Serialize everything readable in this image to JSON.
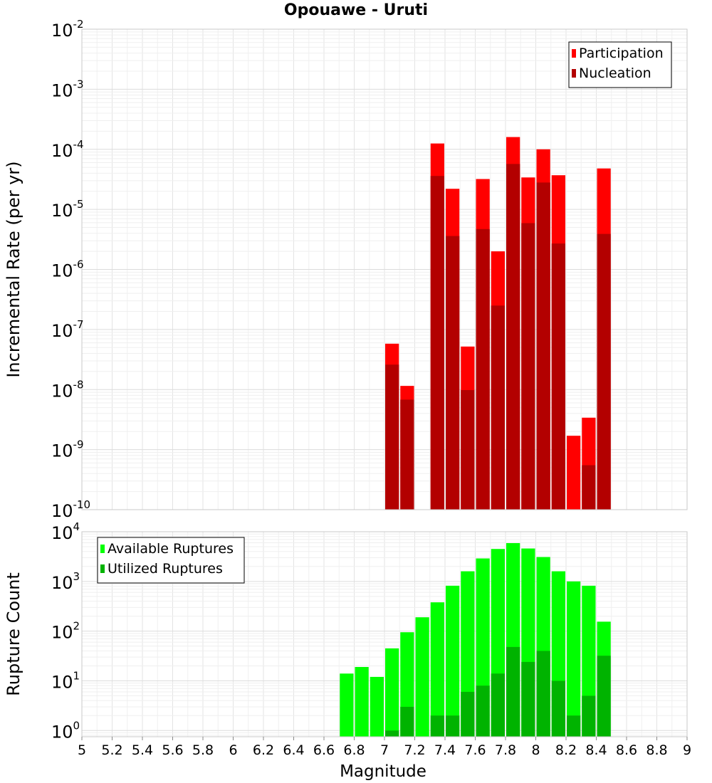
{
  "title": "Opouawe - Uruti",
  "xlabel": "Magnitude",
  "x_ticks": [
    "5",
    "5.2",
    "5.4",
    "5.6",
    "5.8",
    "6",
    "6.2",
    "6.4",
    "6.6",
    "6.8",
    "7",
    "7.2",
    "7.4",
    "7.6",
    "7.8",
    "8",
    "8.2",
    "8.4",
    "8.6",
    "8.8",
    "9"
  ],
  "colors": {
    "participation": "#ff0000",
    "nucleation": "#b30000",
    "available": "#00ff00",
    "utilized": "#00b300"
  },
  "chart_data": [
    {
      "type": "bar",
      "title": "Opouawe - Uruti",
      "ylabel": "Incremental Rate (per yr)",
      "y_scale": "log",
      "ylim": [
        1e-10,
        0.01
      ],
      "xlim": [
        5,
        9
      ],
      "bin_width": 0.1,
      "y_tick_exponents": [
        -10,
        -9,
        -8,
        -7,
        -6,
        -5,
        -4,
        -3,
        -2
      ],
      "legend_position": "top-right",
      "x": [
        7.05,
        7.15,
        7.35,
        7.45,
        7.55,
        7.65,
        7.75,
        7.85,
        7.95,
        8.05,
        8.15,
        8.25,
        8.35,
        8.45
      ],
      "series": [
        {
          "name": "Participation",
          "values": [
            5.8e-08,
            1.15e-08,
            0.000125,
            2.2e-05,
            5.2e-08,
            3.2e-05,
            2e-06,
            0.00016,
            3.4e-05,
            0.0001,
            3.7e-05,
            1.7e-09,
            3.4e-09,
            4.8e-05
          ]
        },
        {
          "name": "Nucleation",
          "values": [
            2.6e-08,
            6.8e-09,
            3.6e-05,
            3.6e-06,
            9.8e-09,
            4.7e-06,
            2.5e-07,
            5.7e-05,
            5.9e-06,
            2.8e-05,
            2.7e-06,
            null,
            5.5e-10,
            3.9e-06
          ]
        }
      ]
    },
    {
      "type": "bar",
      "ylabel": "Rupture Count",
      "y_scale": "log",
      "ylim": [
        0.75,
        10000
      ],
      "xlim": [
        5,
        9
      ],
      "bin_width": 0.1,
      "y_tick_exponents": [
        0,
        1,
        2,
        3,
        4
      ],
      "legend_position": "top-left",
      "x": [
        6.75,
        6.85,
        6.95,
        7.05,
        7.15,
        7.25,
        7.35,
        7.45,
        7.55,
        7.65,
        7.75,
        7.85,
        7.95,
        8.05,
        8.15,
        8.25,
        8.35,
        8.45
      ],
      "series": [
        {
          "name": "Available Ruptures",
          "values": [
            14,
            19,
            12,
            45,
            95,
            190,
            380,
            820,
            1600,
            2900,
            4500,
            5900,
            4600,
            3100,
            1600,
            1000,
            820,
            155
          ]
        },
        {
          "name": "Utilized Ruptures",
          "values": [
            null,
            null,
            null,
            1,
            3,
            null,
            2,
            2,
            6,
            8,
            14,
            48,
            24,
            40,
            10,
            2,
            5,
            32
          ]
        }
      ]
    }
  ]
}
